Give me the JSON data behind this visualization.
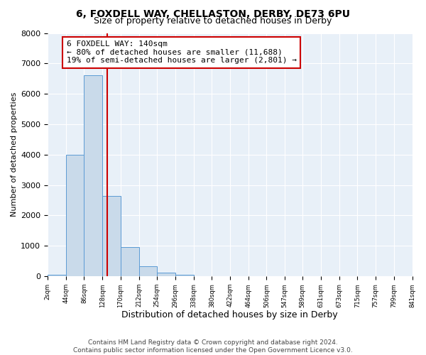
{
  "title": "6, FOXDELL WAY, CHELLASTON, DERBY, DE73 6PU",
  "subtitle": "Size of property relative to detached houses in Derby",
  "xlabel": "Distribution of detached houses by size in Derby",
  "ylabel": "Number of detached properties",
  "bin_edges": [
    2,
    44,
    86,
    128,
    170,
    212,
    254,
    296,
    338,
    380,
    422,
    464,
    506,
    547,
    589,
    631,
    673,
    715,
    757,
    799,
    841
  ],
  "bin_counts": [
    50,
    4000,
    6600,
    2650,
    970,
    330,
    130,
    50,
    0,
    0,
    0,
    0,
    0,
    0,
    0,
    0,
    0,
    0,
    0,
    0
  ],
  "property_line_x": 140,
  "ylim": [
    0,
    8000
  ],
  "yticks": [
    0,
    1000,
    2000,
    3000,
    4000,
    5000,
    6000,
    7000,
    8000
  ],
  "bar_color": "#c9daea",
  "bar_edge_color": "#5b9bd5",
  "vline_color": "#cc0000",
  "annotation_box_color": "#cc0000",
  "annotation_text_line1": "6 FOXDELL WAY: 140sqm",
  "annotation_text_line2": "← 80% of detached houses are smaller (11,688)",
  "annotation_text_line3": "19% of semi-detached houses are larger (2,801) →",
  "annotation_fontsize": 8,
  "tick_labels": [
    "2sqm",
    "44sqm",
    "86sqm",
    "128sqm",
    "170sqm",
    "212sqm",
    "254sqm",
    "296sqm",
    "338sqm",
    "380sqm",
    "422sqm",
    "464sqm",
    "506sqm",
    "547sqm",
    "589sqm",
    "631sqm",
    "673sqm",
    "715sqm",
    "757sqm",
    "799sqm",
    "841sqm"
  ],
  "footer_line1": "Contains HM Land Registry data © Crown copyright and database right 2024.",
  "footer_line2": "Contains public sector information licensed under the Open Government Licence v3.0.",
  "background_color": "#ffffff",
  "plot_bg_color": "#e8f0f8",
  "title_fontsize": 10,
  "subtitle_fontsize": 9,
  "xlabel_fontsize": 9,
  "ylabel_fontsize": 8,
  "ytick_fontsize": 8,
  "xtick_fontsize": 6,
  "footer_fontsize": 6.5
}
